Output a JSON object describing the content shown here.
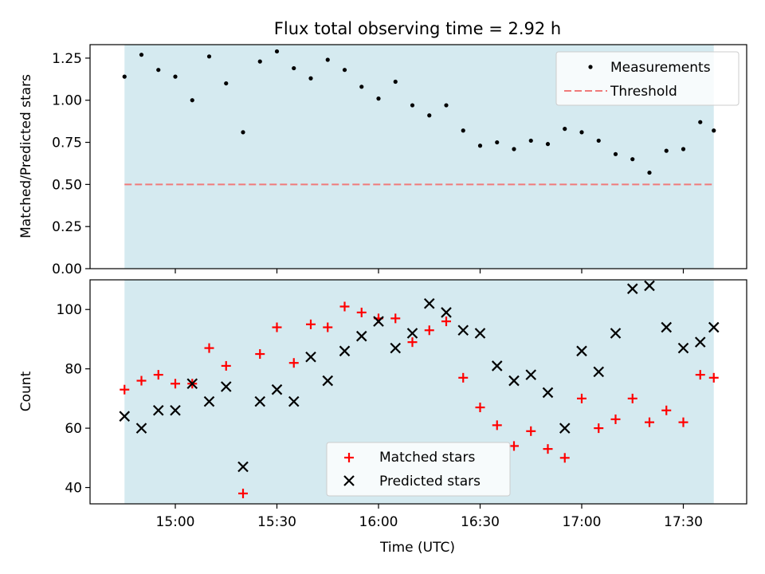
{
  "chart_data": [
    {
      "type": "scatter",
      "title": "Flux total observing time = 2.92 h",
      "xlabel": "",
      "ylabel": "Matched/Predicted stars",
      "ylim": [
        0,
        1.33
      ],
      "yticks": [
        "0.00",
        "0.25",
        "0.50",
        "0.75",
        "1.00",
        "1.25"
      ],
      "ytick_values": [
        0,
        0.25,
        0.5,
        0.75,
        1.0,
        1.25
      ],
      "shaded_span": [
        "14:45",
        "17:39"
      ],
      "threshold": 0.5,
      "legend_position": "top-right",
      "legend": {
        "measurements": "Measurements",
        "threshold": "Threshold"
      },
      "x": [
        "14:45",
        "14:50",
        "14:55",
        "15:00",
        "15:05",
        "15:10",
        "15:15",
        "15:20",
        "15:25",
        "15:30",
        "15:35",
        "15:40",
        "15:45",
        "15:50",
        "15:55",
        "16:00",
        "16:05",
        "16:10",
        "16:15",
        "16:20",
        "16:25",
        "16:30",
        "16:35",
        "16:40",
        "16:45",
        "16:50",
        "16:55",
        "17:00",
        "17:05",
        "17:10",
        "17:15",
        "17:20",
        "17:25",
        "17:30",
        "17:35",
        "17:39"
      ],
      "values": [
        1.14,
        1.27,
        1.18,
        1.14,
        1.0,
        1.26,
        1.1,
        0.81,
        1.23,
        1.29,
        1.19,
        1.13,
        1.24,
        1.18,
        1.08,
        1.01,
        1.11,
        0.97,
        0.91,
        0.97,
        0.82,
        0.73,
        0.75,
        0.71,
        0.76,
        0.74,
        0.83,
        0.81,
        0.76,
        0.68,
        0.65,
        0.57,
        0.7,
        0.71,
        0.87,
        0.82
      ],
      "colors": {
        "shade": "#d5eaf0",
        "points": "#000000",
        "threshold": "#f07a7a"
      }
    },
    {
      "type": "scatter",
      "title": "",
      "xlabel": "Time (UTC)",
      "ylabel": "Count",
      "ylim": [
        34.5,
        110
      ],
      "yticks": [
        "40",
        "60",
        "80",
        "100"
      ],
      "ytick_values": [
        40,
        60,
        80,
        100
      ],
      "xticks": [
        "15:00",
        "15:30",
        "16:00",
        "16:30",
        "17:00",
        "17:30"
      ],
      "shaded_span": [
        "14:45",
        "17:39"
      ],
      "legend_position": "lower-center",
      "x": [
        "14:45",
        "14:50",
        "14:55",
        "15:00",
        "15:05",
        "15:10",
        "15:15",
        "15:20",
        "15:25",
        "15:30",
        "15:35",
        "15:40",
        "15:45",
        "15:50",
        "15:55",
        "16:00",
        "16:05",
        "16:10",
        "16:15",
        "16:20",
        "16:25",
        "16:30",
        "16:35",
        "16:40",
        "16:45",
        "16:50",
        "16:55",
        "17:00",
        "17:05",
        "17:10",
        "17:15",
        "17:20",
        "17:25",
        "17:30",
        "17:35",
        "17:39"
      ],
      "series": [
        {
          "name": "Matched stars",
          "marker": "+",
          "color": "#ff0000",
          "values": [
            73,
            76,
            78,
            75,
            75,
            87,
            81,
            38,
            85,
            94,
            82,
            95,
            94,
            101,
            99,
            97,
            97,
            89,
            93,
            96,
            77,
            67,
            61,
            54,
            59,
            53,
            50,
            70,
            60,
            63,
            70,
            62,
            66,
            62,
            78,
            77
          ]
        },
        {
          "name": "Predicted stars",
          "marker": "x",
          "color": "#000000",
          "values": [
            64,
            60,
            66,
            66,
            75,
            69,
            74,
            47,
            69,
            73,
            69,
            84,
            76,
            86,
            91,
            96,
            87,
            92,
            102,
            99,
            93,
            92,
            81,
            76,
            78,
            72,
            60,
            86,
            79,
            92,
            107,
            108,
            94,
            87,
            89,
            94
          ]
        }
      ]
    }
  ]
}
